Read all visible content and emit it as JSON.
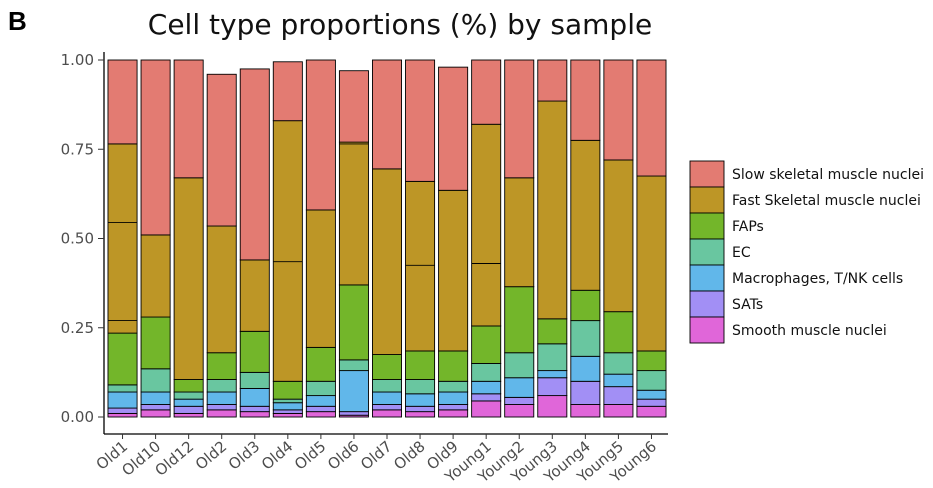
{
  "panel_letter": "B",
  "chart_data": {
    "type": "bar",
    "stacked": true,
    "title": "Cell type proportions (%) by sample",
    "xlabel": "",
    "ylabel": "",
    "ylim": [
      0,
      1
    ],
    "yticks": [
      "0.00",
      "0.25",
      "0.50",
      "0.75",
      "1.00"
    ],
    "ytick_values": [
      0,
      0.25,
      0.5,
      0.75,
      1
    ],
    "grid": false,
    "legend_position": "right",
    "categories": [
      "Old1",
      "Old10",
      "Old12",
      "Old2",
      "Old3",
      "Old4",
      "Old5",
      "Old6",
      "Old7",
      "Old8",
      "Old9",
      "Young1",
      "Young2",
      "Young3",
      "Young4",
      "Young5",
      "Young6"
    ],
    "series": [
      {
        "name": "Smooth muscle nuclei",
        "color": "#e066d9",
        "values": [
          0.01,
          0.02,
          0.01,
          0.02,
          0.015,
          0.01,
          0.015,
          0.005,
          0.02,
          0.015,
          0.02,
          0.045,
          0.035,
          0.06,
          0.035,
          0.035,
          0.03
        ]
      },
      {
        "name": "SATs",
        "color": "#a28ff5",
        "values": [
          0.015,
          0.015,
          0.02,
          0.015,
          0.015,
          0.01,
          0.015,
          0.01,
          0.015,
          0.015,
          0.015,
          0.02,
          0.02,
          0.05,
          0.065,
          0.05,
          0.02
        ]
      },
      {
        "name": "Macrophages, T/NK cells",
        "color": "#61b7ea",
        "values": [
          0.045,
          0.035,
          0.02,
          0.035,
          0.05,
          0.02,
          0.03,
          0.115,
          0.035,
          0.035,
          0.035,
          0.035,
          0.055,
          0.02,
          0.07,
          0.035,
          0.025
        ]
      },
      {
        "name": "EC",
        "color": "#69c6a0",
        "values": [
          0.02,
          0.065,
          0.02,
          0.035,
          0.045,
          0.01,
          0.04,
          0.03,
          0.035,
          0.04,
          0.03,
          0.05,
          0.07,
          0.075,
          0.1,
          0.06,
          0.055
        ]
      },
      {
        "name": "FAPs",
        "color": "#73b62a",
        "values": [
          0.145,
          0.145,
          0.035,
          0.075,
          0.115,
          0.05,
          0.095,
          0.21,
          0.07,
          0.08,
          0.085,
          0.105,
          0.185,
          0.07,
          0.085,
          0.115,
          0.055
        ]
      },
      {
        "name": "Fast Skeletal muscle nuclei",
        "color": "#bd9626",
        "values": [
          0.53,
          0.23,
          0.565,
          0.355,
          0.2,
          0.73,
          0.385,
          0.4,
          0.52,
          0.475,
          0.45,
          0.565,
          0.305,
          0.61,
          0.42,
          0.425,
          0.49
        ]
      },
      {
        "name": "Slow skeletal muscle nuclei",
        "color": "#e37b72",
        "values": [
          0.235,
          0.49,
          0.33,
          0.425,
          0.535,
          0.165,
          0.42,
          0.2,
          0.305,
          0.34,
          0.345,
          0.18,
          0.33,
          0.115,
          0.225,
          0.28,
          0.325
        ]
      }
    ],
    "inner_dividers": [
      [
        0.545,
        0.27
      ],
      [],
      [],
      [],
      [],
      [
        0.435
      ],
      [],
      [
        0.765
      ],
      [],
      [
        0.425
      ],
      [],
      [
        0.43
      ],
      [],
      [],
      [],
      [],
      []
    ]
  },
  "legend": {
    "items": [
      {
        "label": "Slow skeletal muscle nuclei",
        "color": "#e37b72"
      },
      {
        "label": "Fast Skeletal muscle nuclei",
        "color": "#bd9626"
      },
      {
        "label": "FAPs",
        "color": "#73b62a"
      },
      {
        "label": "EC",
        "color": "#69c6a0"
      },
      {
        "label": "Macrophages, T/NK cells",
        "color": "#61b7ea"
      },
      {
        "label": "SATs",
        "color": "#a28ff5"
      },
      {
        "label": "Smooth muscle nuclei",
        "color": "#e066d9"
      }
    ]
  }
}
